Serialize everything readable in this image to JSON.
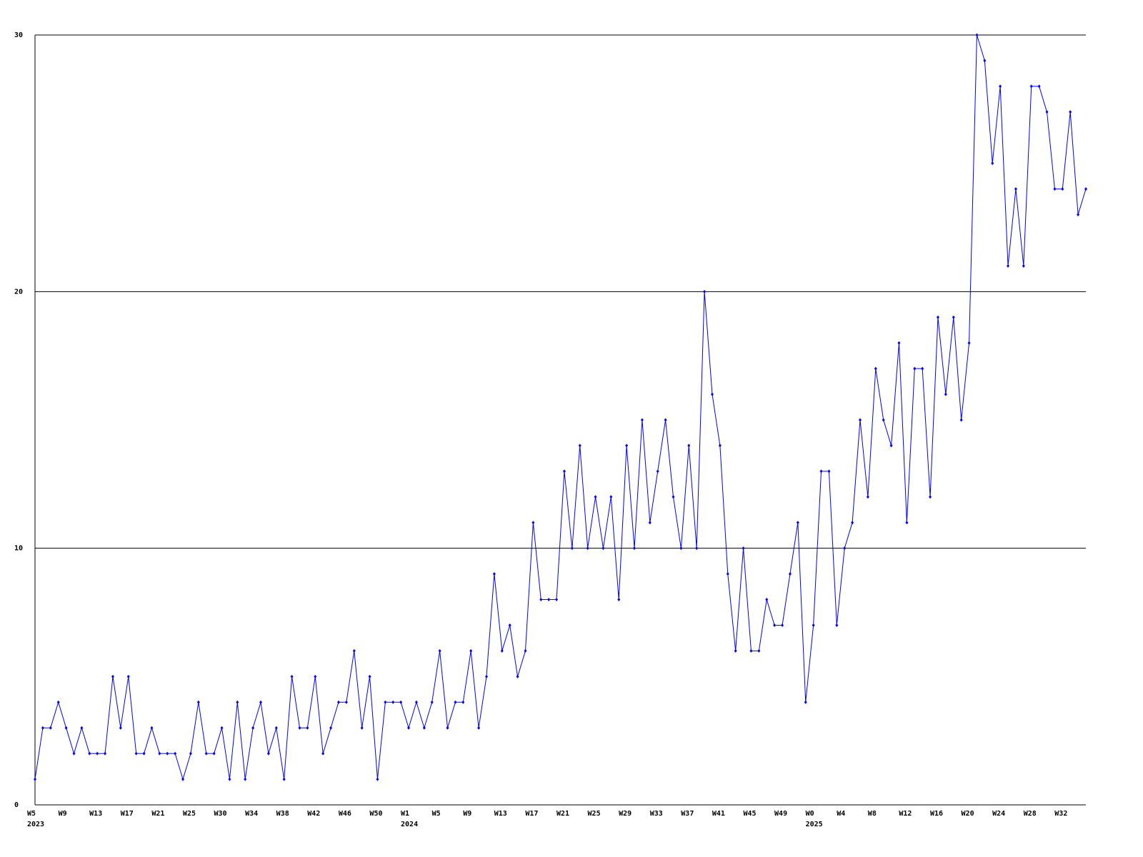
{
  "chart_data": {
    "type": "line",
    "categories": [
      "W5",
      null,
      null,
      null,
      "W9",
      null,
      null,
      null,
      "W13",
      null,
      null,
      null,
      "W17",
      null,
      null,
      null,
      "W21",
      null,
      null,
      null,
      "W25",
      null,
      null,
      null,
      "W30",
      null,
      null,
      null,
      "W34",
      null,
      null,
      null,
      "W38",
      null,
      null,
      null,
      "W42",
      null,
      null,
      null,
      "W46",
      null,
      null,
      null,
      "W50",
      null,
      null,
      null,
      "W1",
      null,
      null,
      null,
      "W5",
      null,
      null,
      null,
      "W9",
      null,
      null,
      null,
      "W13",
      null,
      null,
      null,
      "W17",
      null,
      null,
      null,
      "W21",
      null,
      null,
      null,
      "W25",
      null,
      null,
      null,
      "W29",
      null,
      null,
      null,
      "W33",
      null,
      null,
      null,
      "W37",
      null,
      null,
      null,
      "W41",
      null,
      null,
      null,
      "W45",
      null,
      null,
      null,
      "W49",
      null,
      null,
      null,
      "W0",
      null,
      null,
      null,
      "W4",
      null,
      null,
      null,
      "W8",
      null,
      null,
      null,
      "W12",
      null,
      null,
      null,
      "W16",
      null,
      null,
      null,
      "W20",
      null,
      null,
      null,
      "W24",
      null,
      null,
      null,
      "W28",
      null,
      null,
      null,
      "W32",
      null,
      null,
      null
    ],
    "year_labels": [
      "2023",
      null,
      null,
      null,
      null,
      null,
      null,
      null,
      null,
      null,
      null,
      null,
      null,
      null,
      null,
      null,
      null,
      null,
      null,
      null,
      null,
      null,
      null,
      null,
      null,
      null,
      null,
      null,
      null,
      null,
      null,
      null,
      null,
      null,
      null,
      null,
      null,
      null,
      null,
      null,
      null,
      null,
      null,
      null,
      null,
      null,
      null,
      null,
      "2024",
      null,
      null,
      null,
      null,
      null,
      null,
      null,
      null,
      null,
      null,
      null,
      null,
      null,
      null,
      null,
      null,
      null,
      null,
      null,
      null,
      null,
      null,
      null,
      null,
      null,
      null,
      null,
      null,
      null,
      null,
      null,
      null,
      null,
      null,
      null,
      null,
      null,
      null,
      null,
      null,
      null,
      null,
      null,
      null,
      null,
      null,
      null,
      null,
      null,
      null,
      null,
      "2025",
      null,
      null,
      null,
      null,
      null,
      null,
      null,
      null,
      null,
      null,
      null,
      null,
      null,
      null,
      null,
      null,
      null,
      null,
      null,
      null,
      null,
      null,
      null,
      null,
      null,
      null,
      null,
      null,
      null,
      null,
      null,
      null,
      null,
      null,
      null
    ],
    "series": [
      {
        "color": "#0000ff",
        "values": [
          1,
          3,
          3,
          4,
          3,
          2,
          3,
          2,
          2,
          2,
          5,
          3,
          5,
          2,
          2,
          3,
          2,
          2,
          2,
          1,
          2,
          4,
          2,
          2,
          3,
          1,
          4,
          1,
          3,
          4,
          2,
          3,
          1,
          5,
          3,
          3,
          5,
          2,
          3,
          4,
          4,
          6,
          3,
          5,
          1,
          4,
          4,
          4,
          3,
          4,
          3,
          4,
          6,
          3,
          4,
          4,
          6,
          3,
          5,
          9,
          6,
          7,
          5,
          6,
          11,
          8,
          8,
          8,
          13,
          10,
          14,
          10,
          12,
          10,
          12,
          8,
          14,
          10,
          15,
          11,
          13,
          15,
          12,
          10,
          14,
          10,
          20,
          16,
          14,
          9,
          6,
          10,
          6,
          6,
          8,
          7,
          7,
          9,
          11,
          4,
          7,
          13,
          13,
          7,
          10,
          11,
          15,
          12,
          17,
          15,
          14,
          18,
          11,
          17,
          17,
          12,
          19,
          16,
          19,
          15,
          18,
          30,
          29,
          25,
          28,
          21,
          24,
          21,
          28,
          28,
          27,
          24,
          24,
          27,
          23,
          24
        ]
      }
    ],
    "ylim": [
      0,
      30
    ],
    "yticks": [
      0,
      10,
      20,
      30
    ],
    "grid": true
  }
}
